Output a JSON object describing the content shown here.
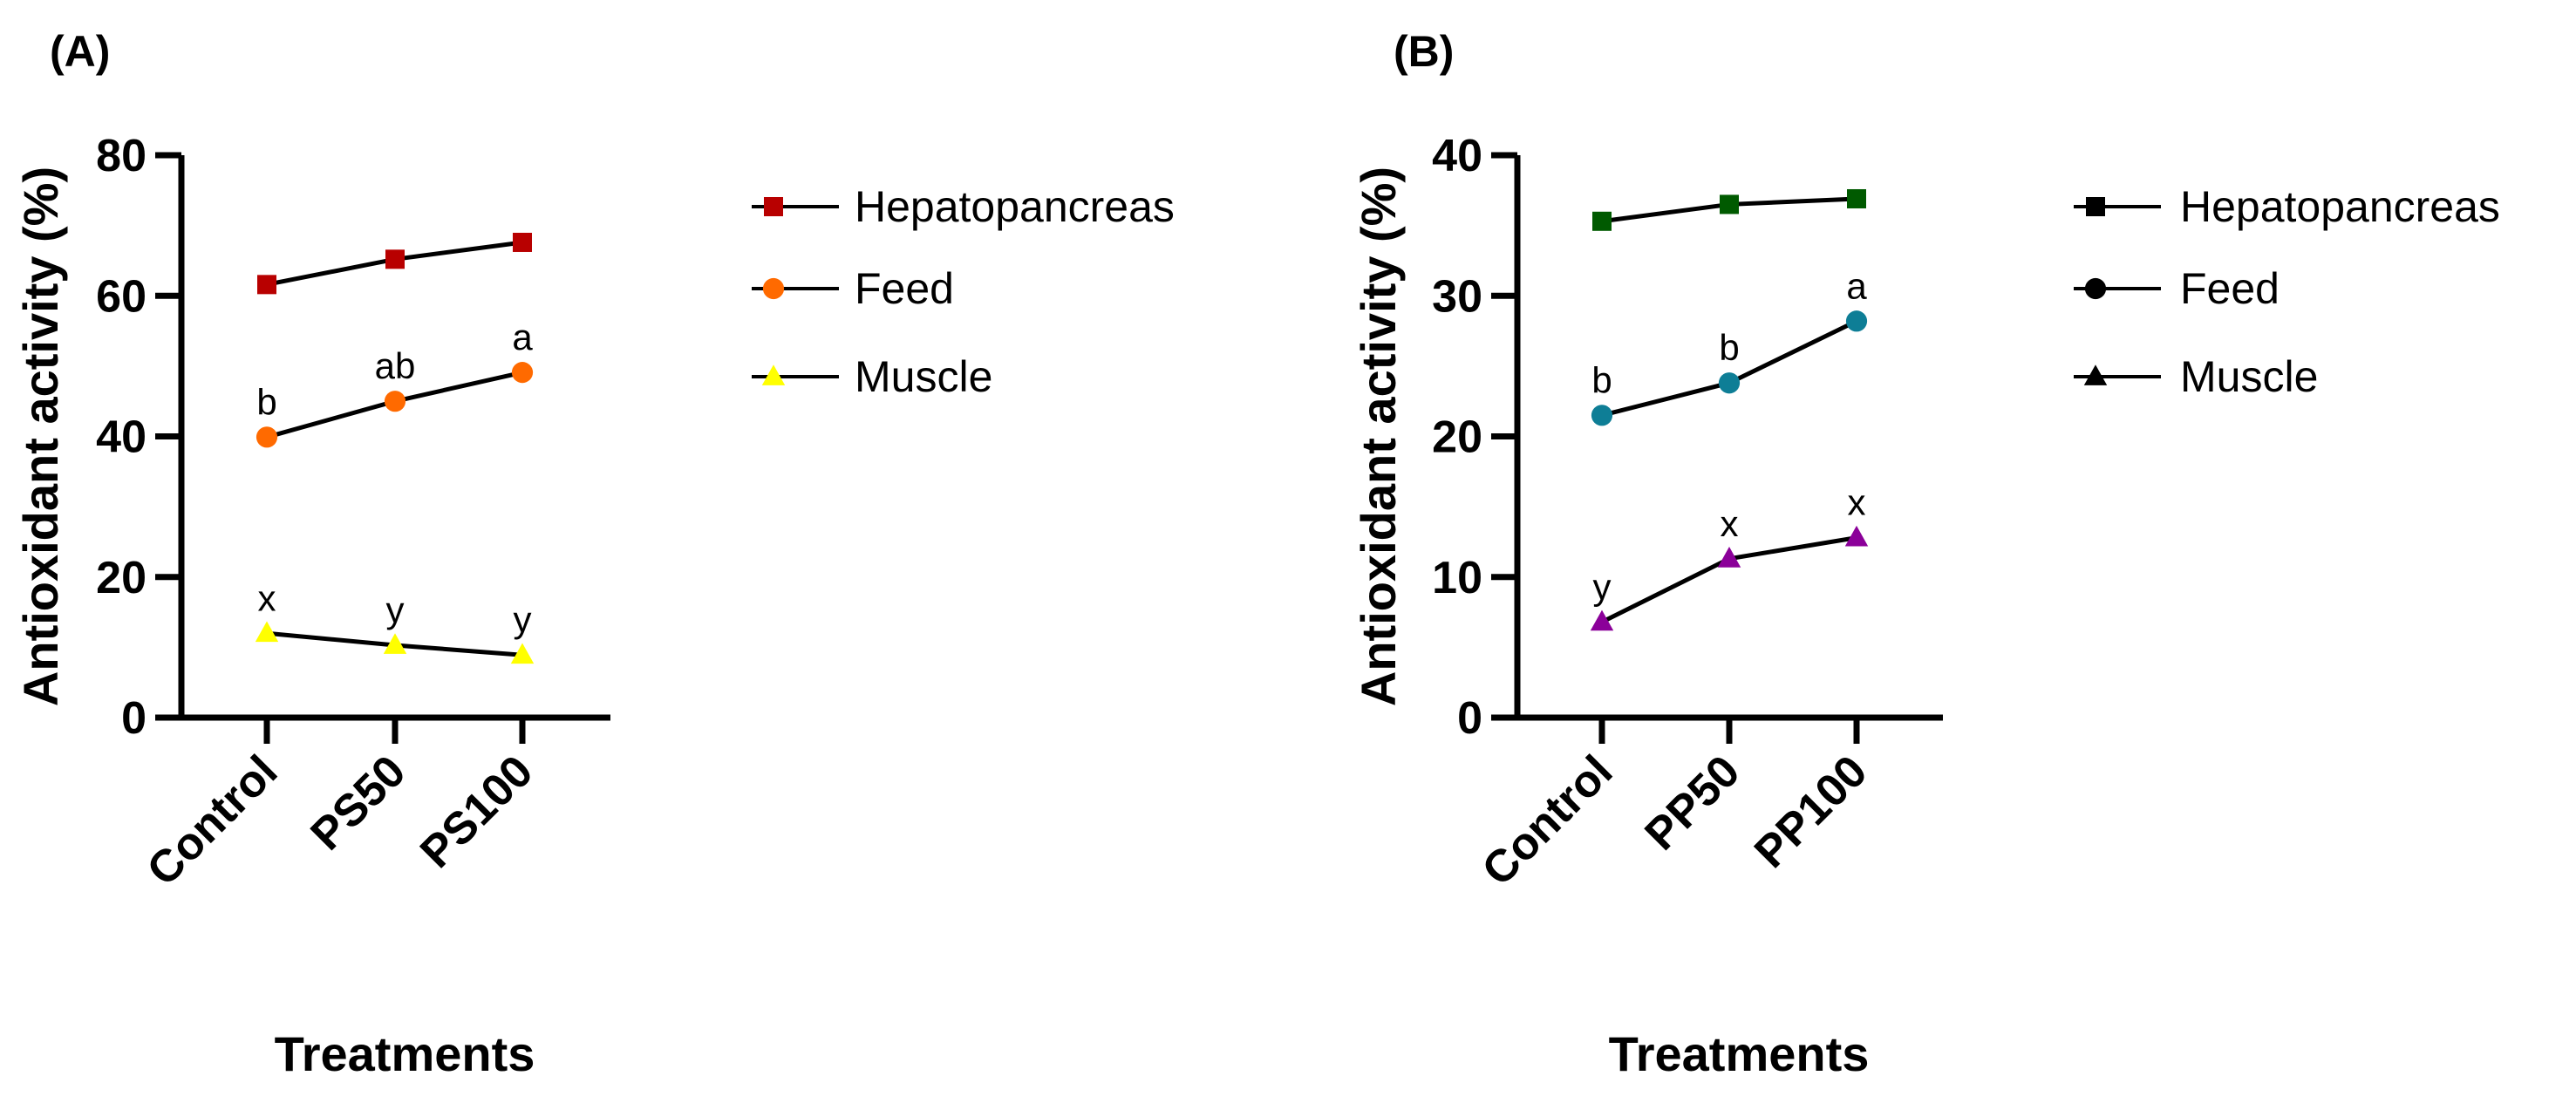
{
  "chart_data": [
    {
      "type": "line",
      "panel_label": "(A)",
      "ylabel": "Antioxidant activity (%)",
      "xlabel": "Treatments",
      "categories": [
        "Control",
        "PS50",
        "PS100"
      ],
      "ylim": [
        0,
        80
      ],
      "yticks": [
        0,
        20,
        40,
        60,
        80
      ],
      "grid": false,
      "legend_position": "right",
      "series": [
        {
          "name": "Hepatopancreas",
          "marker": "square",
          "color": "#B80000",
          "legend_color": "#B80000",
          "values": [
            61.6,
            65.2,
            67.6
          ],
          "sig_labels": [
            "",
            "",
            ""
          ]
        },
        {
          "name": "Feed",
          "marker": "circle",
          "color": "#FF6A00",
          "legend_color": "#FF6A00",
          "values": [
            39.9,
            45.0,
            49.1
          ],
          "sig_labels": [
            "b",
            "ab",
            "a"
          ]
        },
        {
          "name": "Muscle",
          "marker": "triangle",
          "color": "#FFFF00",
          "legend_color": "#FFFF00",
          "values": [
            12.0,
            10.3,
            8.9
          ],
          "sig_labels": [
            "x",
            "y",
            "y"
          ]
        }
      ]
    },
    {
      "type": "line",
      "panel_label": "(B)",
      "ylabel": "Antioxidant activity (%)",
      "xlabel": "Treatments",
      "categories": [
        "Control",
        "PP50",
        "PP100"
      ],
      "ylim": [
        0,
        40
      ],
      "yticks": [
        0,
        10,
        20,
        30,
        40
      ],
      "grid": false,
      "legend_position": "right",
      "series": [
        {
          "name": "Hepatopancreas",
          "marker": "square",
          "color": "#005A00",
          "legend_color": "#000000",
          "values": [
            35.3,
            36.5,
            36.9
          ],
          "sig_labels": [
            "",
            "",
            ""
          ]
        },
        {
          "name": "Feed",
          "marker": "circle",
          "color": "#0E7E96",
          "legend_color": "#000000",
          "values": [
            21.5,
            23.8,
            28.2
          ],
          "sig_labels": [
            "b",
            "b",
            "a"
          ]
        },
        {
          "name": "Muscle",
          "marker": "triangle",
          "color": "#8B0099",
          "legend_color": "#000000",
          "values": [
            6.8,
            11.3,
            12.8
          ],
          "sig_labels": [
            "y",
            "x",
            "x"
          ]
        }
      ]
    }
  ]
}
